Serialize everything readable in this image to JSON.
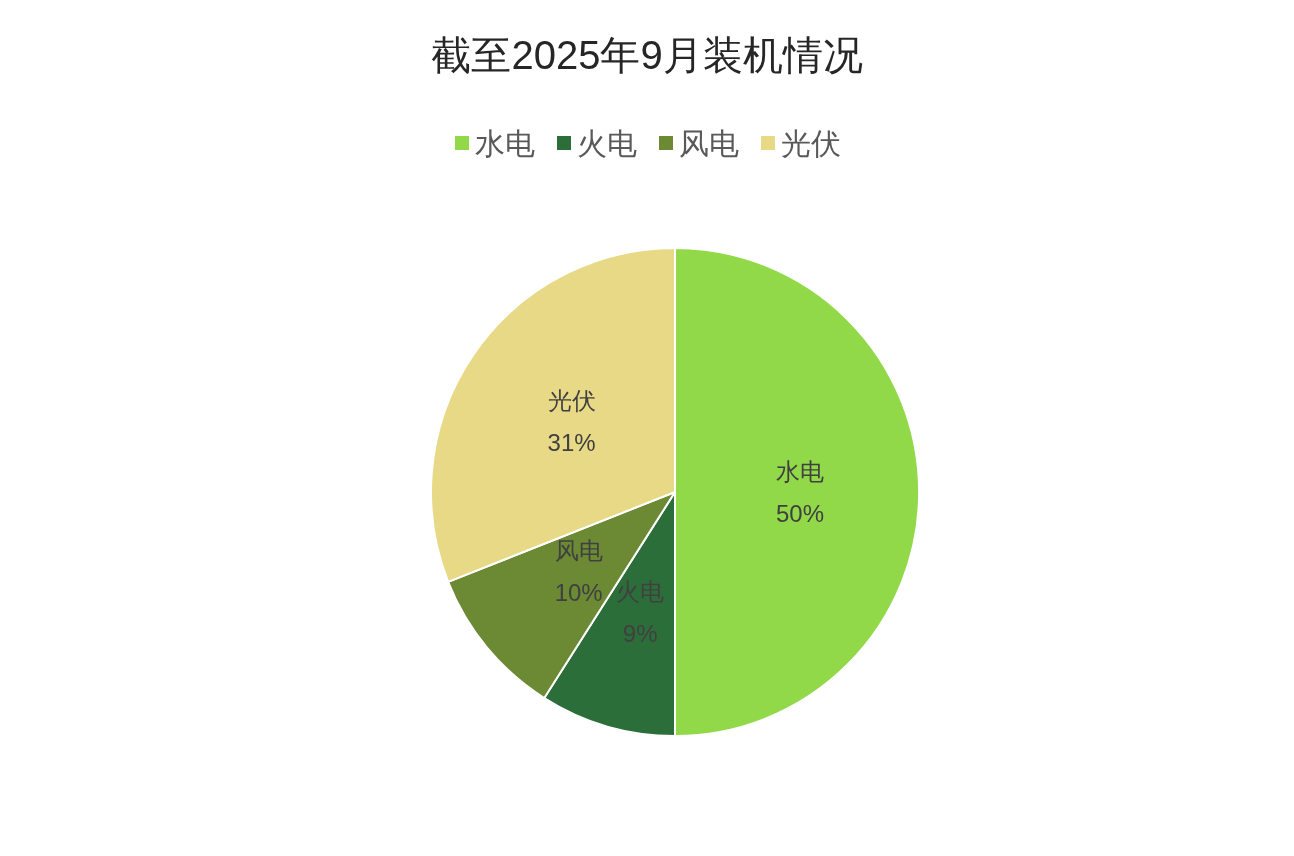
{
  "chart_data": {
    "type": "pie",
    "title": "截至2025年9月装机情况",
    "categories": [
      "水电",
      "火电",
      "风电",
      "光伏"
    ],
    "values": [
      50,
      9,
      10,
      31
    ],
    "colors": [
      "#92d94a",
      "#2c6e3a",
      "#6b8a33",
      "#e8d987"
    ],
    "value_labels": [
      "50%",
      "9%",
      "10%",
      "31%"
    ],
    "legend": "top"
  }
}
